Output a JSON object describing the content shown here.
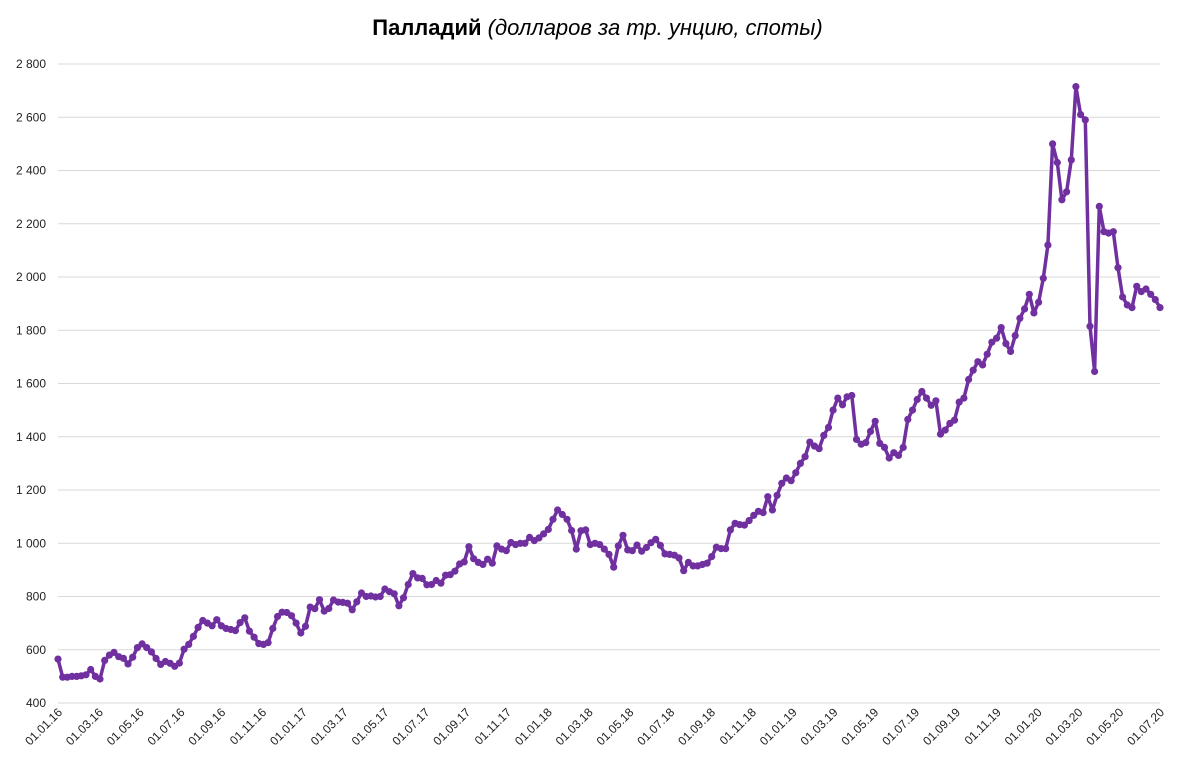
{
  "chart_data": {
    "type": "line",
    "title": "Палладий",
    "subtitle": "(долларов за тр. унцию, споты)",
    "xlabel": "",
    "ylabel": "",
    "ylim": [
      400,
      2800
    ],
    "yticks": [
      "400",
      "600",
      "800",
      "1 000",
      "1 200",
      "1 400",
      "1 600",
      "1 800",
      "2 000",
      "2 200",
      "2 400",
      "2 600",
      "2 800"
    ],
    "ytick_values": [
      400,
      600,
      800,
      1000,
      1200,
      1400,
      1600,
      1800,
      2000,
      2200,
      2400,
      2600,
      2800
    ],
    "xticks": [
      "01.01.16",
      "01.03.16",
      "01.05.16",
      "01.07.16",
      "01.09.16",
      "01.11.16",
      "01.01.17",
      "01.03.17",
      "01.05.17",
      "01.07.17",
      "01.09.17",
      "01.11.17",
      "01.01.18",
      "01.03.18",
      "01.05.18",
      "01.07.18",
      "01.09.18",
      "01.11.18",
      "01.01.19",
      "01.03.19",
      "01.05.19",
      "01.07.19",
      "01.09.19",
      "01.11.19",
      "01.01.20",
      "01.03.20",
      "01.05.20",
      "01.07.20"
    ],
    "grid": true,
    "legend": "none",
    "color": "#7030a0",
    "series": [
      {
        "values": [
          565,
          497,
          497,
          500,
          500,
          502,
          506,
          526,
          500,
          490,
          560,
          580,
          590,
          574,
          568,
          547,
          572,
          608,
          622,
          608,
          592,
          567,
          545,
          556,
          549,
          538,
          550,
          602,
          620,
          650,
          684,
          710,
          700,
          690,
          713,
          690,
          680,
          676,
          672,
          702,
          720,
          670,
          647,
          623,
          620,
          627,
          680,
          725,
          741,
          740,
          728,
          700,
          663,
          688,
          760,
          754,
          788,
          745,
          755,
          787,
          779,
          778,
          775,
          750,
          780,
          813,
          800,
          802,
          798,
          800,
          828,
          818,
          810,
          765,
          795,
          845,
          886,
          870,
          868,
          844,
          845,
          860,
          850,
          880,
          882,
          895,
          922,
          930,
          987,
          942,
          928,
          920,
          940,
          925,
          990,
          978,
          972,
          1003,
          995,
          1000,
          1000,
          1022,
          1010,
          1020,
          1035,
          1052,
          1090,
          1125,
          1108,
          1090,
          1048,
          978,
          1047,
          1050,
          995,
          1000,
          995,
          978,
          958,
          910,
          990,
          1030,
          975,
          972,
          993,
          970,
          984,
          1002,
          1015,
          992,
          960,
          958,
          955,
          945,
          897,
          928,
          915,
          915,
          920,
          925,
          950,
          985,
          980,
          980,
          1050,
          1075,
          1070,
          1068,
          1085,
          1105,
          1120,
          1115,
          1175,
          1125,
          1180,
          1225,
          1245,
          1235,
          1265,
          1300,
          1325,
          1380,
          1365,
          1355,
          1405,
          1435,
          1500,
          1545,
          1520,
          1550,
          1555,
          1390,
          1372,
          1378,
          1420,
          1458,
          1375,
          1360,
          1320,
          1340,
          1330,
          1360,
          1465,
          1500,
          1540,
          1570,
          1545,
          1518,
          1535,
          1410,
          1425,
          1450,
          1462,
          1530,
          1545,
          1615,
          1650,
          1682,
          1670,
          1710,
          1755,
          1770,
          1810,
          1750,
          1720,
          1780,
          1845,
          1880,
          1935,
          1865,
          1905,
          1995,
          2120,
          2500,
          2430,
          2290,
          2320,
          2440,
          2715,
          2610,
          2590,
          1815,
          1645,
          2265,
          2170,
          2165,
          2170,
          2035,
          1925,
          1895,
          1885,
          1965,
          1945,
          1955,
          1935,
          1915,
          1885
        ]
      }
    ]
  }
}
